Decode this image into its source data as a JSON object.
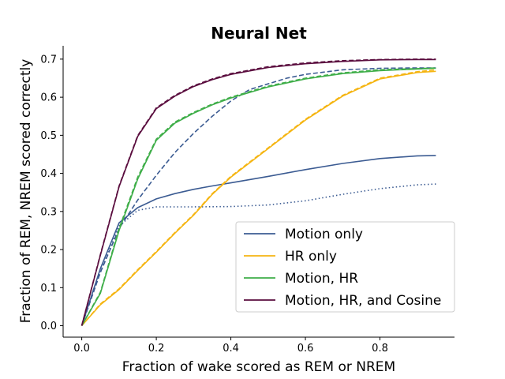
{
  "chart_data": {
    "type": "line",
    "title": "Neural Net",
    "xlabel": "Fraction of wake scored as REM or NREM",
    "ylabel": "Fraction of REM, NREM scored correctly",
    "xlim": [
      -0.05,
      1.0
    ],
    "ylim": [
      -0.03,
      0.735
    ],
    "xticks": [
      0.0,
      0.2,
      0.4,
      0.6,
      0.8
    ],
    "xtick_labels": [
      "0.0",
      "0.2",
      "0.4",
      "0.6",
      "0.8"
    ],
    "yticks": [
      0.0,
      0.1,
      0.2,
      0.3,
      0.4,
      0.5,
      0.6,
      0.7
    ],
    "ytick_labels": [
      "0.0",
      "0.1",
      "0.2",
      "0.3",
      "0.4",
      "0.5",
      "0.6",
      "0.7"
    ],
    "grid": false,
    "legend_position": "lower-right",
    "series": [
      {
        "name": "Motion only",
        "color": "#3b5b92",
        "style": "solid",
        "x": [
          0.0,
          0.05,
          0.1,
          0.15,
          0.2,
          0.25,
          0.3,
          0.35,
          0.4,
          0.5,
          0.6,
          0.7,
          0.8,
          0.9,
          0.95
        ],
        "y": [
          0.0,
          0.15,
          0.27,
          0.31,
          0.333,
          0.347,
          0.358,
          0.367,
          0.375,
          0.392,
          0.41,
          0.426,
          0.439,
          0.446,
          0.447
        ]
      },
      {
        "name": "Motion only (dashed)",
        "color": "#3b5b92",
        "style": "dashed",
        "legend": false,
        "x": [
          0.0,
          0.05,
          0.1,
          0.15,
          0.2,
          0.25,
          0.3,
          0.35,
          0.4,
          0.45,
          0.5,
          0.55,
          0.6,
          0.7,
          0.8,
          0.9,
          0.95
        ],
        "y": [
          0.0,
          0.14,
          0.255,
          0.33,
          0.395,
          0.455,
          0.505,
          0.55,
          0.59,
          0.62,
          0.635,
          0.65,
          0.66,
          0.672,
          0.676,
          0.677,
          0.677
        ]
      },
      {
        "name": "Motion only (dotted)",
        "color": "#3b5b92",
        "style": "dotted",
        "legend": false,
        "x": [
          0.0,
          0.05,
          0.1,
          0.15,
          0.2,
          0.3,
          0.4,
          0.5,
          0.6,
          0.7,
          0.8,
          0.9,
          0.95
        ],
        "y": [
          0.0,
          0.14,
          0.262,
          0.303,
          0.312,
          0.312,
          0.313,
          0.317,
          0.328,
          0.345,
          0.36,
          0.37,
          0.372
        ]
      },
      {
        "name": "HR only",
        "color": "#f5b512",
        "style": "solid",
        "x": [
          0.0,
          0.05,
          0.1,
          0.15,
          0.2,
          0.25,
          0.3,
          0.35,
          0.4,
          0.5,
          0.6,
          0.7,
          0.8,
          0.9,
          0.95
        ],
        "y": [
          0.0,
          0.055,
          0.095,
          0.145,
          0.193,
          0.243,
          0.29,
          0.345,
          0.39,
          0.465,
          0.54,
          0.603,
          0.648,
          0.665,
          0.668
        ]
      },
      {
        "name": "HR only (dashed)",
        "color": "#f5b512",
        "style": "dashed",
        "legend": false,
        "x": [
          0.0,
          0.05,
          0.1,
          0.15,
          0.2,
          0.25,
          0.3,
          0.35,
          0.4,
          0.5,
          0.6,
          0.7,
          0.8,
          0.9,
          0.95
        ],
        "y": [
          0.0,
          0.057,
          0.097,
          0.147,
          0.195,
          0.245,
          0.292,
          0.347,
          0.392,
          0.467,
          0.542,
          0.605,
          0.65,
          0.667,
          0.672
        ]
      },
      {
        "name": "Motion, HR",
        "color": "#3fae49",
        "style": "solid",
        "x": [
          0.0,
          0.05,
          0.1,
          0.15,
          0.2,
          0.25,
          0.3,
          0.35,
          0.4,
          0.5,
          0.6,
          0.7,
          0.8,
          0.9,
          0.95
        ],
        "y": [
          0.0,
          0.085,
          0.25,
          0.385,
          0.487,
          0.532,
          0.558,
          0.58,
          0.598,
          0.627,
          0.648,
          0.662,
          0.67,
          0.674,
          0.676
        ]
      },
      {
        "name": "Motion, HR (dashed)",
        "color": "#3fae49",
        "style": "dashed",
        "legend": false,
        "x": [
          0.0,
          0.05,
          0.1,
          0.15,
          0.2,
          0.25,
          0.3,
          0.35,
          0.4,
          0.5,
          0.6,
          0.7,
          0.8,
          0.9,
          0.95
        ],
        "y": [
          0.0,
          0.088,
          0.255,
          0.39,
          0.49,
          0.535,
          0.56,
          0.582,
          0.6,
          0.629,
          0.65,
          0.664,
          0.672,
          0.675,
          0.677
        ]
      },
      {
        "name": "Motion, HR, and Cosine",
        "color": "#5a0d3e",
        "style": "solid",
        "x": [
          0.0,
          0.05,
          0.1,
          0.15,
          0.2,
          0.25,
          0.3,
          0.35,
          0.4,
          0.5,
          0.6,
          0.7,
          0.8,
          0.9,
          0.95
        ],
        "y": [
          0.0,
          0.185,
          0.365,
          0.497,
          0.57,
          0.603,
          0.628,
          0.646,
          0.66,
          0.678,
          0.688,
          0.694,
          0.698,
          0.699,
          0.699
        ]
      },
      {
        "name": "Motion, HR, and Cosine (dashed)",
        "color": "#5a0d3e",
        "style": "dashed",
        "legend": false,
        "x": [
          0.0,
          0.05,
          0.1,
          0.15,
          0.2,
          0.25,
          0.3,
          0.35,
          0.4,
          0.5,
          0.6,
          0.7,
          0.8,
          0.9,
          0.95
        ],
        "y": [
          0.0,
          0.187,
          0.367,
          0.499,
          0.572,
          0.605,
          0.63,
          0.648,
          0.662,
          0.68,
          0.69,
          0.696,
          0.699,
          0.7,
          0.7
        ]
      }
    ]
  }
}
